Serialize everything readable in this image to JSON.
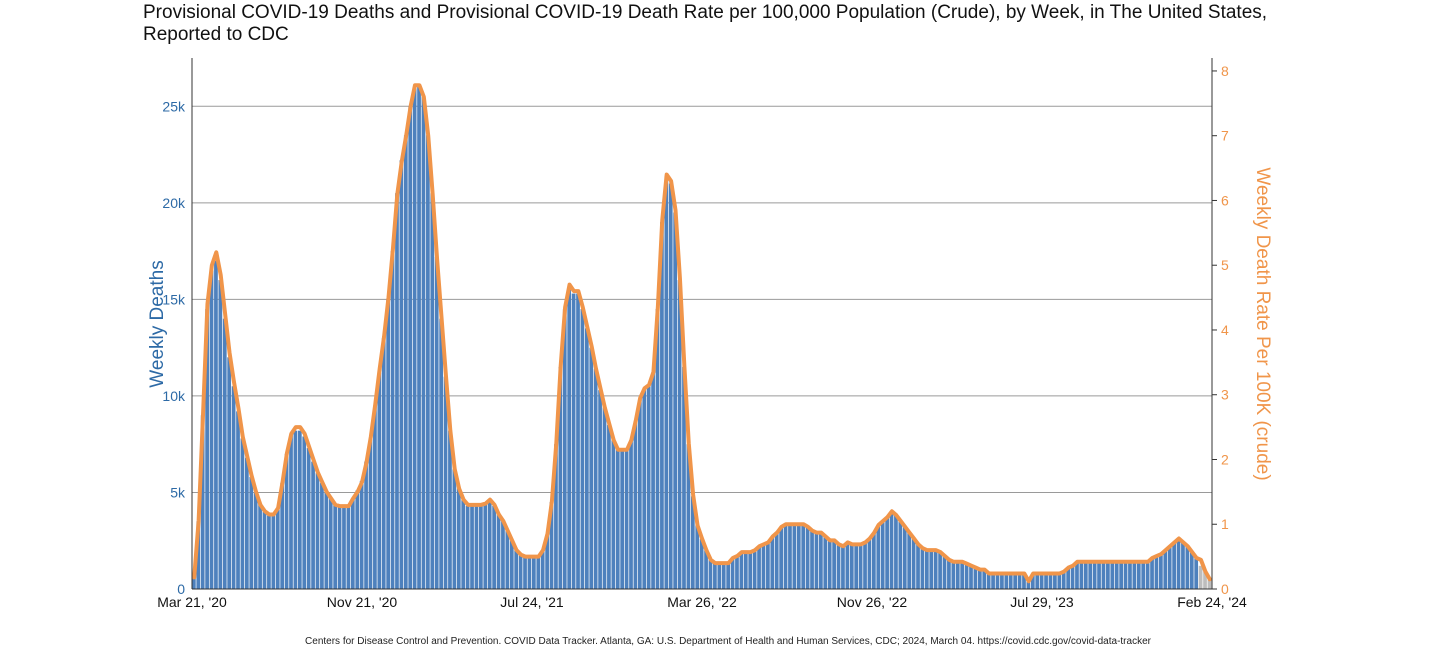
{
  "title_line1": "Provisional COVID-19 Deaths and Provisional COVID-19 Death Rate per 100,000 Population (Crude), by Week, in The United States,",
  "title_line2": "Reported to CDC",
  "source": "Centers for Disease Control and Prevention. COVID Data Tracker. Atlanta, GA: U.S. Department of Health and Human Services, CDC; 2024, March 04. https://covid.cdc.gov/covid-data-tracker",
  "colors": {
    "bar": "#4e81bd",
    "bar_gray": "#bdbdbd",
    "line": "#f0954a",
    "left_axis": "#2d6aa6",
    "right_axis": "#f0954a",
    "grid": "#9a9a9a"
  },
  "chart_data": {
    "type": "bar",
    "title": "Provisional COVID-19 Deaths and Provisional COVID-19 Death Rate per 100,000 Population (Crude), by Week, in The United States, Reported to CDC",
    "xlabel": "",
    "ylabel": "Weekly Deaths",
    "ylabel_right": "Weekly Death Rate Per 100K (crude)",
    "ylim": [
      0,
      27500
    ],
    "ylim_right": [
      0,
      8.2
    ],
    "yticks": [
      0,
      5000,
      10000,
      15000,
      20000,
      25000
    ],
    "ytick_labels": [
      "0",
      "5k",
      "10k",
      "15k",
      "20k",
      "25k"
    ],
    "yticks_right": [
      0,
      1,
      2,
      3,
      4,
      5,
      6,
      7,
      8
    ],
    "xtick_labels": [
      "Mar 21, '20",
      "Nov 21, '20",
      "Jul 24, '21",
      "Mar 26, '22",
      "Nov 26, '22",
      "Jul 29, '23",
      "Feb 24, '24"
    ],
    "grid": true,
    "series": [
      {
        "name": "Weekly Deaths",
        "kind": "bar",
        "values": [
          600,
          3500,
          9000,
          14500,
          16500,
          17000,
          16000,
          14000,
          12000,
          10500,
          9200,
          7800,
          6800,
          5800,
          5000,
          4400,
          4000,
          3800,
          3800,
          4200,
          5500,
          7000,
          8000,
          8200,
          8200,
          7900,
          7300,
          6600,
          6000,
          5500,
          5000,
          4700,
          4400,
          4300,
          4300,
          4300,
          4700,
          5100,
          5600,
          6600,
          7800,
          9500,
          11200,
          13000,
          15000,
          17500,
          20500,
          22200,
          23500,
          25000,
          26000,
          26000,
          25500,
          23500,
          20500,
          17200,
          14000,
          11000,
          8200,
          6200,
          5200,
          4600,
          4300,
          4300,
          4300,
          4300,
          4400,
          4600,
          4300,
          3900,
          3500,
          3000,
          2500,
          2000,
          1800,
          1700,
          1700,
          1700,
          1700,
          2000,
          2800,
          4500,
          7500,
          11500,
          14500,
          15500,
          15300,
          15300,
          14500,
          13500,
          12500,
          11400,
          10300,
          9400,
          8500,
          7700,
          7200,
          7200,
          7200,
          7700,
          8700,
          9800,
          10300,
          10500,
          11200,
          14500,
          19000,
          21400,
          21000,
          19500,
          16000,
          11500,
          7500,
          4800,
          3300,
          2600,
          2000,
          1500,
          1400,
          1400,
          1400,
          1400,
          1600,
          1700,
          1900,
          1900,
          1900,
          2000,
          2200,
          2300,
          2400,
          2700,
          2900,
          3200,
          3300,
          3300,
          3300,
          3300,
          3300,
          3200,
          3000,
          2900,
          2900,
          2700,
          2500,
          2500,
          2300,
          2200,
          2400,
          2300,
          2300,
          2300,
          2400,
          2600,
          2900,
          3300,
          3500,
          3700,
          4000,
          3800,
          3500,
          3200,
          2900,
          2600,
          2300,
          2100,
          2000,
          2000,
          2000,
          1900,
          1700,
          1500,
          1400,
          1400,
          1400,
          1300,
          1200,
          1100,
          1000,
          1000,
          800,
          800,
          800,
          800,
          800,
          800,
          800,
          800,
          800,
          600,
          800,
          800,
          800,
          800,
          800,
          800,
          800,
          900,
          1100,
          1200,
          1400,
          1400,
          1400,
          1400,
          1400,
          1400,
          1400,
          1400,
          1400,
          1400,
          1400,
          1400,
          1400,
          1400,
          1400,
          1400,
          1400,
          1600,
          1700,
          1800,
          2000,
          2200,
          2400,
          2500,
          2400,
          2200,
          1900,
          1600,
          1200,
          900,
          600
        ],
        "provisional_last": 3
      },
      {
        "name": "Weekly Death Rate Per 100K (crude)",
        "kind": "line",
        "axis": "right",
        "values": [
          0.18,
          1.05,
          2.7,
          4.4,
          5.0,
          5.2,
          4.85,
          4.25,
          3.65,
          3.2,
          2.8,
          2.35,
          2.05,
          1.75,
          1.5,
          1.3,
          1.2,
          1.15,
          1.15,
          1.25,
          1.65,
          2.1,
          2.4,
          2.5,
          2.5,
          2.4,
          2.2,
          2.0,
          1.8,
          1.65,
          1.5,
          1.4,
          1.3,
          1.28,
          1.28,
          1.28,
          1.4,
          1.5,
          1.65,
          1.95,
          2.35,
          2.85,
          3.4,
          3.9,
          4.5,
          5.25,
          6.1,
          6.6,
          7.0,
          7.45,
          7.78,
          7.78,
          7.6,
          7.0,
          6.1,
          5.1,
          4.2,
          3.3,
          2.45,
          1.85,
          1.55,
          1.38,
          1.3,
          1.3,
          1.3,
          1.3,
          1.32,
          1.38,
          1.3,
          1.15,
          1.05,
          0.9,
          0.75,
          0.6,
          0.53,
          0.5,
          0.5,
          0.5,
          0.5,
          0.6,
          0.85,
          1.35,
          2.25,
          3.45,
          4.35,
          4.7,
          4.6,
          4.6,
          4.35,
          4.05,
          3.75,
          3.4,
          3.1,
          2.8,
          2.55,
          2.3,
          2.15,
          2.15,
          2.15,
          2.3,
          2.6,
          2.95,
          3.1,
          3.15,
          3.35,
          4.35,
          5.7,
          6.4,
          6.3,
          5.85,
          4.8,
          3.45,
          2.25,
          1.45,
          0.98,
          0.78,
          0.6,
          0.45,
          0.4,
          0.4,
          0.4,
          0.4,
          0.48,
          0.51,
          0.57,
          0.57,
          0.57,
          0.6,
          0.66,
          0.69,
          0.72,
          0.81,
          0.87,
          0.96,
          1.0,
          1.0,
          1.0,
          1.0,
          1.0,
          0.96,
          0.9,
          0.87,
          0.87,
          0.81,
          0.75,
          0.75,
          0.69,
          0.66,
          0.72,
          0.69,
          0.69,
          0.69,
          0.72,
          0.78,
          0.87,
          0.99,
          1.05,
          1.11,
          1.2,
          1.14,
          1.05,
          0.96,
          0.87,
          0.78,
          0.69,
          0.63,
          0.6,
          0.6,
          0.6,
          0.57,
          0.51,
          0.45,
          0.42,
          0.42,
          0.42,
          0.39,
          0.36,
          0.33,
          0.3,
          0.3,
          0.24,
          0.24,
          0.24,
          0.24,
          0.24,
          0.24,
          0.24,
          0.24,
          0.24,
          0.12,
          0.24,
          0.24,
          0.24,
          0.24,
          0.24,
          0.24,
          0.24,
          0.27,
          0.33,
          0.36,
          0.42,
          0.42,
          0.42,
          0.42,
          0.42,
          0.42,
          0.42,
          0.42,
          0.42,
          0.42,
          0.42,
          0.42,
          0.42,
          0.42,
          0.42,
          0.42,
          0.42,
          0.48,
          0.51,
          0.54,
          0.6,
          0.66,
          0.72,
          0.78,
          0.72,
          0.66,
          0.57,
          0.48,
          0.45,
          0.27,
          0.15
        ]
      }
    ]
  }
}
